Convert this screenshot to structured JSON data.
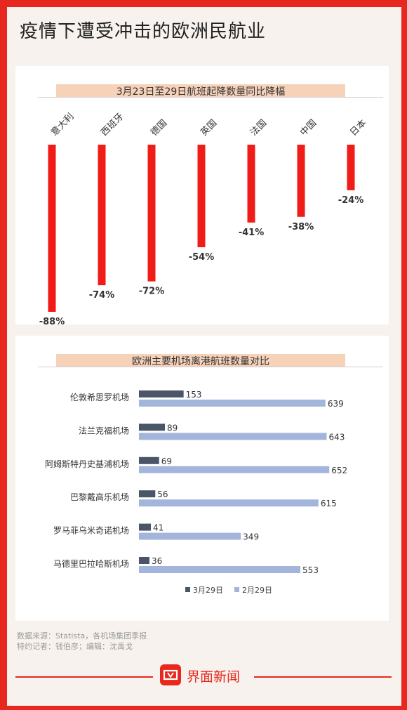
{
  "title": "疫情下遭受冲击的欧洲民航业",
  "colors": {
    "accent": "#e8281e",
    "bar_red": "#f01c17",
    "series_dark": "#4a5568",
    "series_light": "#a4b5dc"
  },
  "chart_data": [
    {
      "type": "bar",
      "title": "3月23日至29日航班起降数量同比降幅",
      "categories": [
        "意大利",
        "西班牙",
        "德国",
        "英国",
        "法国",
        "中国",
        "日本"
      ],
      "values": [
        -88,
        -74,
        -72,
        -54,
        -41,
        -38,
        -24
      ],
      "value_labels": [
        "-88%",
        "-74%",
        "-72%",
        "-54%",
        "-41%",
        "-38%",
        "-24%"
      ],
      "ylim": [
        -100,
        0
      ],
      "grid": false,
      "legend": "none"
    },
    {
      "type": "bar",
      "orientation": "horizontal",
      "title": "欧洲主要机场离港航班数量对比",
      "categories": [
        "伦敦希思罗机场",
        "法兰克福机场",
        "阿姆斯特丹史基浦机场",
        "巴黎戴高乐机场",
        "罗马菲乌米奇诺机场",
        "马德里巴拉哈斯机场"
      ],
      "series": [
        {
          "name": "3月29日",
          "values": [
            153,
            89,
            69,
            56,
            41,
            36
          ]
        },
        {
          "name": "2月29日",
          "values": [
            639,
            643,
            652,
            615,
            349,
            553
          ]
        }
      ],
      "xlim": [
        0,
        700
      ],
      "grid": false,
      "legend": "bottom"
    }
  ],
  "footer": {
    "source": "数据来源：Statista，各机场集团季报",
    "credits": "特约记者：钱伯彦；编辑：沈禹戈"
  },
  "brand": {
    "name": "界面新闻",
    "logo_icon": "jiemian-logo-icon"
  }
}
